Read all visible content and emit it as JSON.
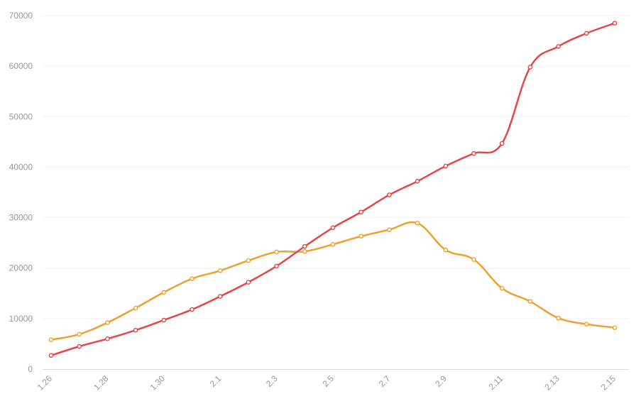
{
  "chart_data": {
    "type": "line",
    "title": "",
    "xlabel": "",
    "ylabel": "",
    "x": [
      "1.26",
      "1.27",
      "1.28",
      "1.29",
      "1.30",
      "1.31",
      "2.1",
      "2.2",
      "2.3",
      "2.4",
      "2.5",
      "2.6",
      "2.7",
      "2.8",
      "2.9",
      "2.10",
      "2.11",
      "2.12",
      "2.13",
      "2.14",
      "2.15"
    ],
    "x_tick_labels": [
      "1.26",
      "1.28",
      "1.30",
      "2.1",
      "2.3",
      "2.5",
      "2.7",
      "2.9",
      "2.11",
      "2.13",
      "2.15"
    ],
    "y_tick_labels": [
      "0",
      "10000",
      "20000",
      "30000",
      "40000",
      "50000",
      "60000",
      "70000"
    ],
    "ylim": [
      0,
      70000
    ],
    "grid": true,
    "series": [
      {
        "color": "#e84545",
        "values": [
          2700,
          4500,
          6000,
          7700,
          9700,
          11800,
          14400,
          17200,
          20400,
          24300,
          28000,
          31100,
          34500,
          37200,
          40200,
          42700,
          44700,
          59800,
          63900,
          66500,
          68500
        ]
      },
      {
        "color": "#f0a030",
        "values": [
          5800,
          6900,
          9200,
          12100,
          15200,
          17900,
          19500,
          21500,
          23200,
          23300,
          24700,
          26300,
          27600,
          28900,
          23600,
          21700,
          16000,
          13400,
          10100,
          8900,
          8200
        ]
      }
    ]
  }
}
